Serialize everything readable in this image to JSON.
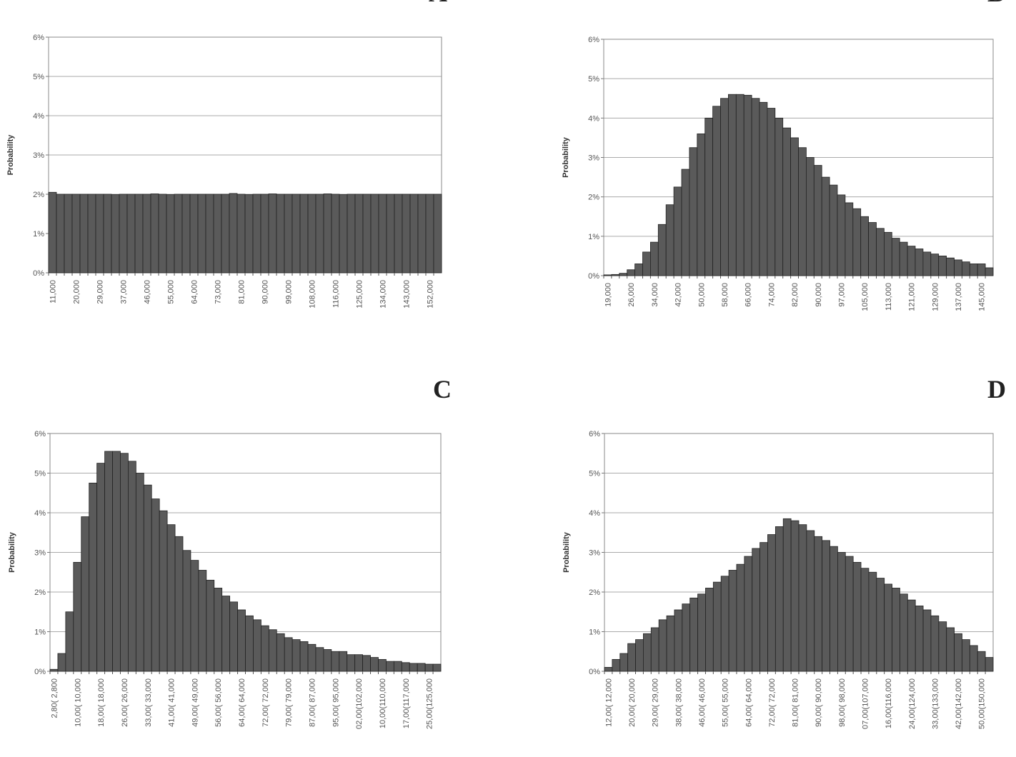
{
  "chart_data": [
    {
      "type": "bar",
      "title": "A",
      "y_label": "Probability",
      "color": "#5a5a5a",
      "grid": true,
      "ylim": [
        0,
        6
      ],
      "yticks": [
        {
          "value": 0,
          "label": "0%"
        },
        {
          "value": 1,
          "label": "1%"
        },
        {
          "value": 2,
          "label": "2%"
        },
        {
          "value": 3,
          "label": "3%"
        },
        {
          "value": 4,
          "label": "4%"
        },
        {
          "value": 5,
          "label": "5%"
        },
        {
          "value": 6,
          "label": "6%"
        }
      ],
      "categories": [
        "11,000",
        null,
        null,
        "20,000",
        null,
        null,
        "29,000",
        null,
        null,
        "37,000",
        null,
        null,
        "46,000",
        null,
        null,
        "55,000",
        null,
        null,
        "64,000",
        null,
        null,
        "73,000",
        null,
        null,
        "81,000",
        null,
        null,
        "90,000",
        null,
        null,
        "99,000",
        null,
        null,
        "108,000",
        null,
        null,
        "116,000",
        null,
        null,
        "125,000",
        null,
        null,
        "134,000",
        null,
        null,
        "143,000",
        null,
        null,
        "152,000",
        null
      ],
      "values": [
        2.05,
        2.0,
        2.0,
        2.0,
        2.0,
        2.0,
        2.0,
        2.0,
        1.99,
        2.0,
        2.0,
        2.0,
        2.0,
        2.01,
        2.0,
        1.99,
        2.0,
        2.0,
        2.0,
        2.0,
        2.0,
        2.0,
        2.0,
        2.02,
        2.0,
        1.99,
        2.0,
        2.0,
        2.01,
        2.0,
        2.0,
        2.0,
        2.0,
        2.0,
        2.0,
        2.01,
        2.0,
        1.99,
        2.0,
        2.0,
        2.0,
        2.0,
        2.0,
        2.0,
        2.0,
        2.0,
        2.0,
        2.0,
        2.0,
        2.0
      ]
    },
    {
      "type": "bar",
      "title": "B",
      "y_label": "Probability",
      "color": "#5a5a5a",
      "grid": true,
      "ylim": [
        0,
        6
      ],
      "yticks": [
        {
          "value": 0,
          "label": "0%"
        },
        {
          "value": 1,
          "label": "1%"
        },
        {
          "value": 2,
          "label": "2%"
        },
        {
          "value": 3,
          "label": "3%"
        },
        {
          "value": 4,
          "label": "4%"
        },
        {
          "value": 5,
          "label": "5%"
        },
        {
          "value": 6,
          "label": "6%"
        }
      ],
      "categories": [
        "19,000",
        null,
        null,
        "26,000",
        null,
        null,
        "34,000",
        null,
        null,
        "42,000",
        null,
        null,
        "50,000",
        null,
        null,
        "58,000",
        null,
        null,
        "66,000",
        null,
        null,
        "74,000",
        null,
        null,
        "82,000",
        null,
        null,
        "90,000",
        null,
        null,
        "97,000",
        null,
        null,
        "105,000",
        null,
        null,
        "113,000",
        null,
        null,
        "121,000",
        null,
        null,
        "129,000",
        null,
        null,
        "137,000",
        null,
        null,
        "145,000",
        null
      ],
      "values": [
        0.02,
        0.03,
        0.06,
        0.15,
        0.3,
        0.6,
        0.85,
        1.3,
        1.8,
        2.25,
        2.7,
        3.25,
        3.6,
        4.0,
        4.3,
        4.5,
        4.6,
        4.6,
        4.58,
        4.5,
        4.4,
        4.25,
        4.0,
        3.75,
        3.5,
        3.25,
        3.0,
        2.8,
        2.5,
        2.3,
        2.05,
        1.85,
        1.7,
        1.5,
        1.35,
        1.2,
        1.1,
        0.95,
        0.85,
        0.75,
        0.68,
        0.6,
        0.55,
        0.5,
        0.45,
        0.4,
        0.35,
        0.3,
        0.3,
        0.2
      ]
    },
    {
      "type": "bar",
      "title": "C",
      "y_label": "Probability",
      "color": "#5a5a5a",
      "grid": true,
      "ylim": [
        0,
        6
      ],
      "yticks": [
        {
          "value": 0,
          "label": "0%"
        },
        {
          "value": 1,
          "label": "1%"
        },
        {
          "value": 2,
          "label": "2%"
        },
        {
          "value": 3,
          "label": "3%"
        },
        {
          "value": 4,
          "label": "4%"
        },
        {
          "value": 5,
          "label": "5%"
        },
        {
          "value": 6,
          "label": "6%"
        }
      ],
      "categories": [
        "2,80( 2,800",
        null,
        null,
        "10,00( 10,000",
        null,
        null,
        "18,00( 18,000",
        null,
        null,
        "26,00( 26,000",
        null,
        null,
        "33,00( 33,000",
        null,
        null,
        "41,00( 41,000",
        null,
        null,
        "49,00( 49,000",
        null,
        null,
        "56,00( 56,000",
        null,
        null,
        "64,00( 64,000",
        null,
        null,
        "72,00( 72,000",
        null,
        null,
        "79,00( 79,000",
        null,
        null,
        "87,00( 87,000",
        null,
        null,
        "95,00( 95,000",
        null,
        null,
        "02,00(102,000",
        null,
        null,
        "10,00(110,000",
        null,
        null,
        "17,00(117,000",
        null,
        null,
        "25,00(125,000",
        null
      ],
      "values": [
        0.05,
        0.45,
        1.5,
        2.75,
        3.9,
        4.75,
        5.25,
        5.55,
        5.55,
        5.5,
        5.3,
        5.0,
        4.7,
        4.35,
        4.05,
        3.7,
        3.4,
        3.05,
        2.8,
        2.55,
        2.3,
        2.1,
        1.9,
        1.75,
        1.55,
        1.4,
        1.3,
        1.15,
        1.05,
        0.95,
        0.85,
        0.8,
        0.75,
        0.68,
        0.6,
        0.55,
        0.5,
        0.5,
        0.42,
        0.42,
        0.4,
        0.35,
        0.3,
        0.25,
        0.25,
        0.22,
        0.2,
        0.2,
        0.18,
        0.18
      ]
    },
    {
      "type": "bar",
      "title": "D",
      "y_label": "Probability",
      "color": "#5a5a5a",
      "grid": true,
      "ylim": [
        0,
        6
      ],
      "yticks": [
        {
          "value": 0,
          "label": "0%"
        },
        {
          "value": 1,
          "label": "1%"
        },
        {
          "value": 2,
          "label": "2%"
        },
        {
          "value": 3,
          "label": "3%"
        },
        {
          "value": 4,
          "label": "4%"
        },
        {
          "value": 5,
          "label": "5%"
        },
        {
          "value": 6,
          "label": "6%"
        }
      ],
      "categories": [
        "12,00( 12,000",
        null,
        null,
        "20,00( 20,000",
        null,
        null,
        "29,00( 29,000",
        null,
        null,
        "38,00( 38,000",
        null,
        null,
        "46,00( 46,000",
        null,
        null,
        "55,00( 55,000",
        null,
        null,
        "64,00( 64,000",
        null,
        null,
        "72,00( 72,000",
        null,
        null,
        "81,00( 81,000",
        null,
        null,
        "90,00( 90,000",
        null,
        null,
        "98,00( 98,000",
        null,
        null,
        "07,00(107,000",
        null,
        null,
        "16,00(116,000",
        null,
        null,
        "24,00(124,000",
        null,
        null,
        "33,00(133,000",
        null,
        null,
        "42,00(142,000",
        null,
        null,
        "50,00(150,000",
        null
      ],
      "values": [
        0.1,
        0.3,
        0.45,
        0.7,
        0.8,
        0.95,
        1.1,
        1.3,
        1.4,
        1.55,
        1.7,
        1.85,
        1.95,
        2.1,
        2.25,
        2.4,
        2.55,
        2.7,
        2.9,
        3.1,
        3.25,
        3.45,
        3.65,
        3.85,
        3.8,
        3.7,
        3.55,
        3.4,
        3.3,
        3.15,
        3.0,
        2.9,
        2.75,
        2.6,
        2.5,
        2.35,
        2.2,
        2.1,
        1.95,
        1.8,
        1.65,
        1.55,
        1.4,
        1.25,
        1.1,
        0.95,
        0.8,
        0.65,
        0.5,
        0.35
      ]
    }
  ]
}
